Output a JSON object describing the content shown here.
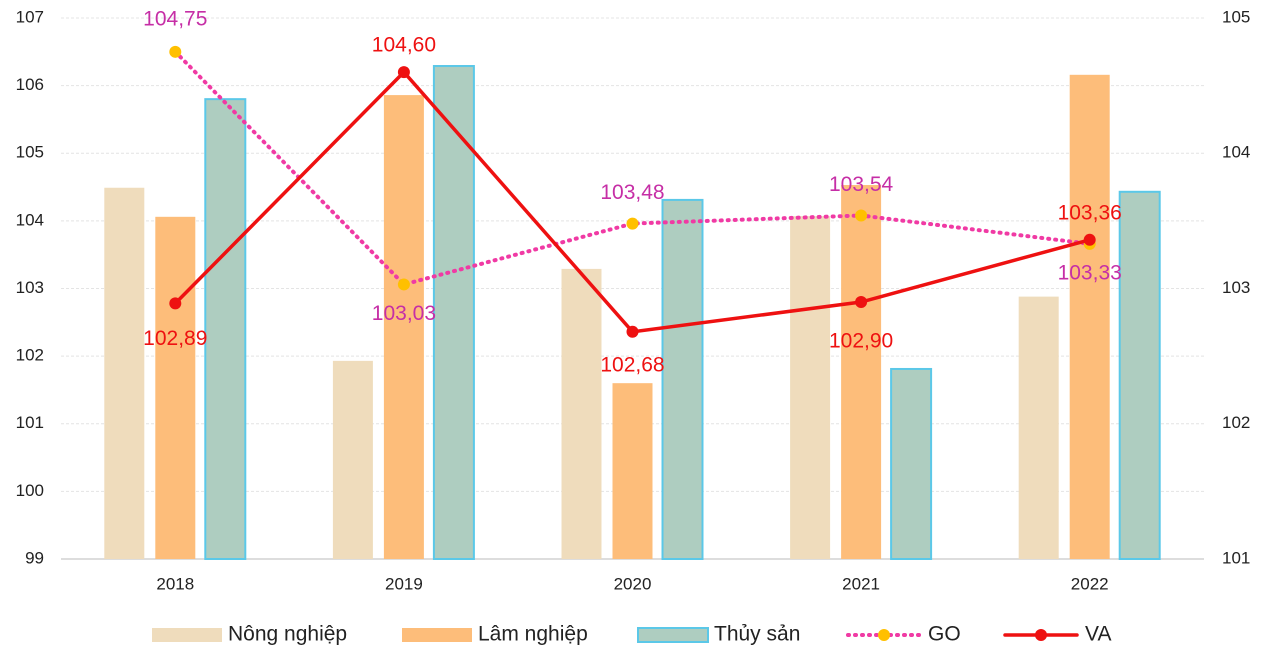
{
  "chart_data": {
    "type": "bar",
    "categories": [
      "2018",
      "2019",
      "2020",
      "2021",
      "2022"
    ],
    "series": [
      {
        "name": "Nông nghiệp",
        "color": "#efdcbc",
        "values": [
          104.49,
          101.93,
          103.29,
          104.07,
          102.88
        ]
      },
      {
        "name": "Lâm nghiệp",
        "color": "#fdbd7a",
        "values": [
          104.06,
          105.86,
          101.6,
          104.53,
          106.16
        ]
      },
      {
        "name": "Thủy sản",
        "color": "#aecdc0",
        "edge": "#5bc8e8",
        "values": [
          105.8,
          106.29,
          104.31,
          101.81,
          104.43
        ]
      },
      {
        "name": "GO",
        "type": "line",
        "axis": "y2",
        "color": "#f03aa4",
        "marker": "#ffc000",
        "label_color": "#c62ea6",
        "dashed": true,
        "values": [
          104.75,
          103.03,
          103.48,
          103.54,
          103.33
        ],
        "value_labels": [
          "104,75",
          "103,03",
          "103,48",
          "103,54",
          "103,33"
        ]
      },
      {
        "name": "VA",
        "type": "line",
        "axis": "y2",
        "color": "#ee1111",
        "marker": "#ee1111",
        "label_color": "#ee1111",
        "dashed": false,
        "values": [
          102.89,
          104.6,
          102.68,
          102.9,
          103.36
        ],
        "value_labels": [
          "102,89",
          "104,60",
          "102,68",
          "102,90",
          "103,36"
        ]
      }
    ],
    "ylim": [
      99,
      107
    ],
    "yticks": [
      99,
      100,
      101,
      102,
      103,
      104,
      105,
      106,
      107
    ],
    "y2lim": [
      101,
      105
    ],
    "y2ticks": [
      101,
      102,
      103,
      104,
      105
    ],
    "grid": true,
    "legend": "bottom"
  }
}
